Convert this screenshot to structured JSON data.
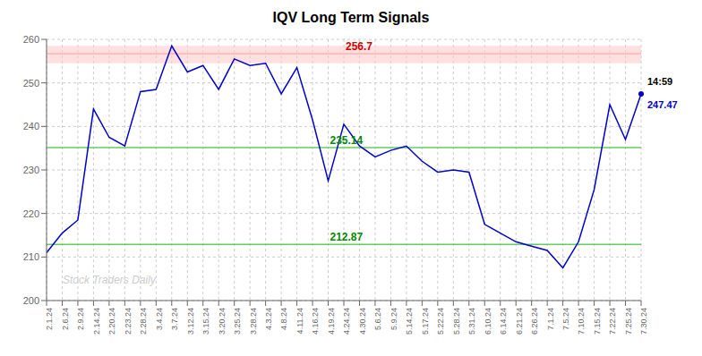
{
  "chart_data": {
    "type": "line",
    "title": "IQV Long Term Signals",
    "watermark": "Stock Traders Daily",
    "categories": [
      "2.1.24",
      "2.6.24",
      "2.9.24",
      "2.14.24",
      "2.20.24",
      "2.23.24",
      "2.28.24",
      "3.4.24",
      "3.7.24",
      "3.12.24",
      "3.15.24",
      "3.20.24",
      "3.25.24",
      "3.28.24",
      "4.3.24",
      "4.8.24",
      "4.11.24",
      "4.16.24",
      "4.19.24",
      "4.24.24",
      "4.30.24",
      "5.6.24",
      "5.9.24",
      "5.14.24",
      "5.17.24",
      "5.22.24",
      "5.28.24",
      "5.31.24",
      "6.10.24",
      "6.14.24",
      "6.21.24",
      "6.26.24",
      "7.1.24",
      "7.5.24",
      "7.10.24",
      "7.15.24",
      "7.22.24",
      "7.25.24",
      "7.30.24"
    ],
    "values": [
      211.0,
      215.5,
      218.5,
      244.0,
      237.5,
      235.5,
      248.0,
      248.5,
      258.5,
      252.5,
      254.0,
      248.5,
      255.5,
      254.0,
      254.5,
      247.5,
      253.5,
      241.5,
      227.5,
      240.5,
      235.5,
      233.0,
      234.5,
      235.5,
      232.0,
      229.5,
      230.0,
      229.5,
      217.5,
      215.5,
      213.5,
      212.5,
      211.5,
      207.5,
      213.5,
      225.5,
      245.0,
      237.0,
      247.47
    ],
    "color": "#0000cc",
    "ylim": [
      200,
      260
    ],
    "yticks": [
      200,
      210,
      220,
      230,
      240,
      250,
      260
    ],
    "grid": true,
    "resistance_band": {
      "low": 254.5,
      "high": 258.5,
      "color": "#ffcccc"
    },
    "resistance_line": {
      "value": 256.7,
      "color": "#ff9999",
      "label_color": "#cc0000",
      "label_x": "4.24.24"
    },
    "support_lines": [
      {
        "value": 235.14,
        "color": "#66cc66",
        "label_color": "#008800",
        "label_x": "4.19.24"
      },
      {
        "value": 212.87,
        "color": "#66cc66",
        "label_color": "#008800",
        "label_x": "4.19.24"
      }
    ],
    "annotations": [
      {
        "text": "14:59",
        "x": "7.30.24",
        "y": 247.47,
        "position": "above",
        "color": "#000000"
      },
      {
        "text": "247.47",
        "x": "7.30.24",
        "y": 247.47,
        "position": "below",
        "color": "#0000cc"
      }
    ]
  }
}
